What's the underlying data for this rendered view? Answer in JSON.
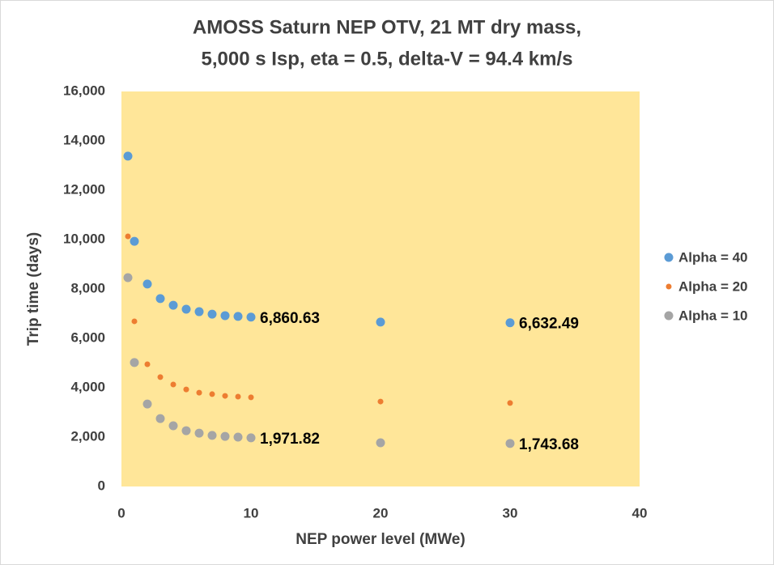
{
  "chart_data": {
    "type": "scatter",
    "title": [
      "AMOSS Saturn NEP OTV, 21 MT dry mass,",
      "5,000 s Isp, eta = 0.5, delta-V = 94.4 km/s"
    ],
    "x_label": "NEP power level (MWe)",
    "y_label": "Trip time (days)",
    "x": [
      0.5,
      1,
      2,
      3,
      4,
      5,
      6,
      7,
      8,
      9,
      10,
      20,
      30
    ],
    "series": [
      {
        "name": "Alpha = 40",
        "color": "#5b9bd5",
        "marker_size": 5.5,
        "values": [
          13380,
          9930,
          8200,
          7610,
          7340,
          7180,
          7080,
          6980,
          6920,
          6890,
          6860.63,
          6660,
          6632.49
        ],
        "value_labels": [
          null,
          null,
          null,
          null,
          null,
          null,
          null,
          null,
          null,
          null,
          "6,860.63",
          null,
          "6,632.49"
        ]
      },
      {
        "name": "Alpha = 20",
        "color": "#ed7d31",
        "marker_size": 3.5,
        "values": [
          10130,
          6690,
          4950,
          4430,
          4130,
          3930,
          3800,
          3740,
          3670,
          3640,
          3610,
          3440,
          3380
        ]
      },
      {
        "name": "Alpha = 10",
        "color": "#a5a5a5",
        "marker_size": 5.5,
        "values": [
          8460,
          5020,
          3340,
          2750,
          2460,
          2260,
          2160,
          2070,
          2030,
          2000,
          1971.82,
          1770,
          1743.68
        ],
        "value_labels": [
          null,
          null,
          null,
          null,
          null,
          null,
          null,
          null,
          null,
          null,
          "1,971.82",
          null,
          "1,743.68"
        ]
      }
    ],
    "xlim": [
      0,
      40
    ],
    "xticks": [
      0,
      10,
      20,
      30,
      40
    ],
    "ylim": [
      0,
      16000
    ],
    "yticks": [
      0,
      {
        "value": 2000,
        "label": "2,000"
      },
      {
        "value": 4000,
        "label": "4,000"
      },
      {
        "value": 6000,
        "label": "6,000"
      },
      {
        "value": 8000,
        "label": "8,000"
      },
      {
        "value": 10000,
        "label": "10,000"
      },
      {
        "value": 12000,
        "label": "12,000"
      },
      {
        "value": 14000,
        "label": "14,000"
      },
      {
        "value": 16000,
        "label": "16,000"
      }
    ],
    "plot_background": "#ffe699",
    "legend": "right"
  }
}
